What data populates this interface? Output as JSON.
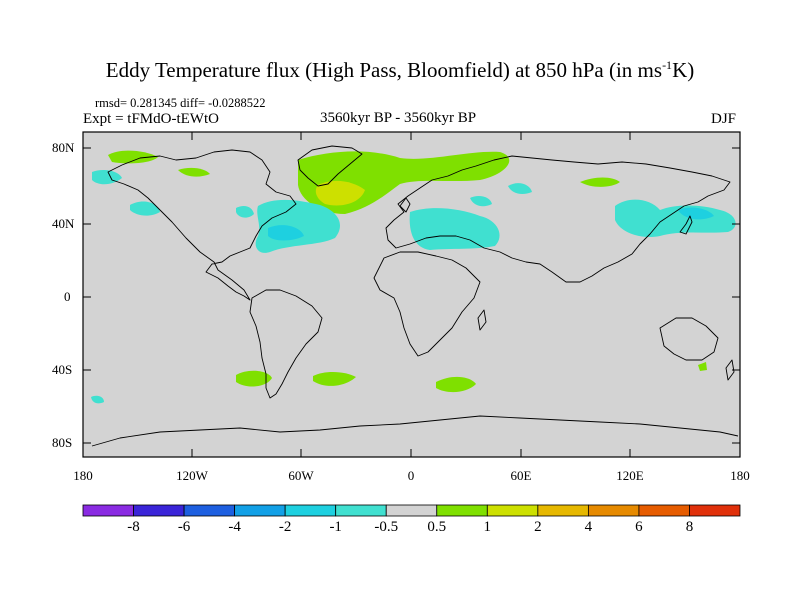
{
  "title_main": "Eddy Temperature flux (High Pass, Bloomfield) at 850 hPa (in ms",
  "title_sup": "-1",
  "title_end": "K)",
  "stats": "rmsd= 0.281345 diff= -0.0288522",
  "expt": "Expt = tFMdO-tEWtO",
  "period": "3560kyr BP - 3560kyr BP",
  "season": "DJF",
  "lat_labels": [
    "80N",
    "40N",
    "0",
    "40S",
    "80S"
  ],
  "lon_labels": [
    "180",
    "120W",
    "60W",
    "0",
    "60E",
    "120E",
    "180"
  ],
  "colorbar": {
    "labels": [
      "-8",
      "-6",
      "-4",
      "-2",
      "-1",
      "-0.5",
      "0.5",
      "1",
      "2",
      "4",
      "6",
      "8"
    ],
    "colors": [
      "#8a2be2",
      "#3a24d8",
      "#1d5fe0",
      "#12a0e6",
      "#1ed0e0",
      "#40e0d0",
      "#d3d3d3",
      "#7fe000",
      "#cde000",
      "#e6b800",
      "#e68a00",
      "#e65c00",
      "#e0300a"
    ]
  },
  "colors": {
    "land_bg": "#d3d3d3",
    "positive_low": "#7fe000",
    "positive_mid": "#cde000",
    "negative_low": "#40e0d0",
    "negative_mid": "#1ed0e0"
  }
}
